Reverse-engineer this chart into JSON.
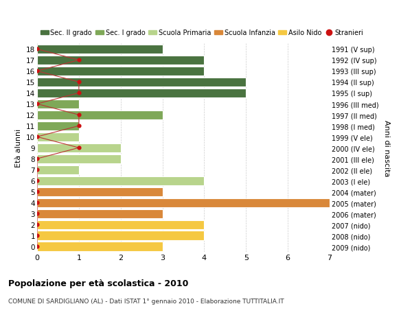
{
  "ages": [
    18,
    17,
    16,
    15,
    14,
    13,
    12,
    11,
    10,
    9,
    8,
    7,
    6,
    5,
    4,
    3,
    2,
    1,
    0
  ],
  "years": [
    "1991 (V sup)",
    "1992 (IV sup)",
    "1993 (III sup)",
    "1994 (II sup)",
    "1995 (I sup)",
    "1996 (III med)",
    "1997 (II med)",
    "1998 (I med)",
    "1999 (V ele)",
    "2000 (IV ele)",
    "2001 (III ele)",
    "2002 (II ele)",
    "2003 (I ele)",
    "2004 (mater)",
    "2005 (mater)",
    "2006 (mater)",
    "2007 (nido)",
    "2008 (nido)",
    "2009 (nido)"
  ],
  "bar_values": [
    3,
    4,
    4,
    5,
    5,
    1,
    3,
    1,
    1,
    2,
    2,
    1,
    4,
    3,
    7,
    3,
    4,
    4,
    3
  ],
  "bar_colors": [
    "#4a7340",
    "#4a7340",
    "#4a7340",
    "#4a7340",
    "#4a7340",
    "#7fa858",
    "#7fa858",
    "#7fa858",
    "#b8d48c",
    "#b8d48c",
    "#b8d48c",
    "#b8d48c",
    "#b8d48c",
    "#d9883a",
    "#d9883a",
    "#d9883a",
    "#f5c842",
    "#f5c842",
    "#f5c842"
  ],
  "stranieri_x": [
    0,
    1,
    0,
    1,
    1,
    0,
    1,
    1,
    0,
    1,
    0,
    0,
    0,
    0,
    0,
    0,
    0,
    0,
    0
  ],
  "legend_labels": [
    "Sec. II grado",
    "Sec. I grado",
    "Scuola Primaria",
    "Scuola Infanzia",
    "Asilo Nido",
    "Stranieri"
  ],
  "legend_colors": [
    "#4a7340",
    "#7fa858",
    "#b8d48c",
    "#d9883a",
    "#f5c842",
    "#cc1111"
  ],
  "title": "Popolazione per età scolastica - 2010",
  "subtitle": "COMUNE DI SARDIGLIANO (AL) - Dati ISTAT 1° gennaio 2010 - Elaborazione TUTTITALIA.IT",
  "ylabel_left": "Età alunni",
  "ylabel_right": "Anni di nascita",
  "xlim": [
    0,
    7
  ],
  "bg_color": "#ffffff",
  "bar_height": 0.82,
  "grid_color": "#cccccc",
  "stranieri_line_color": "#bb3333",
  "stranieri_dot_color": "#cc1111"
}
